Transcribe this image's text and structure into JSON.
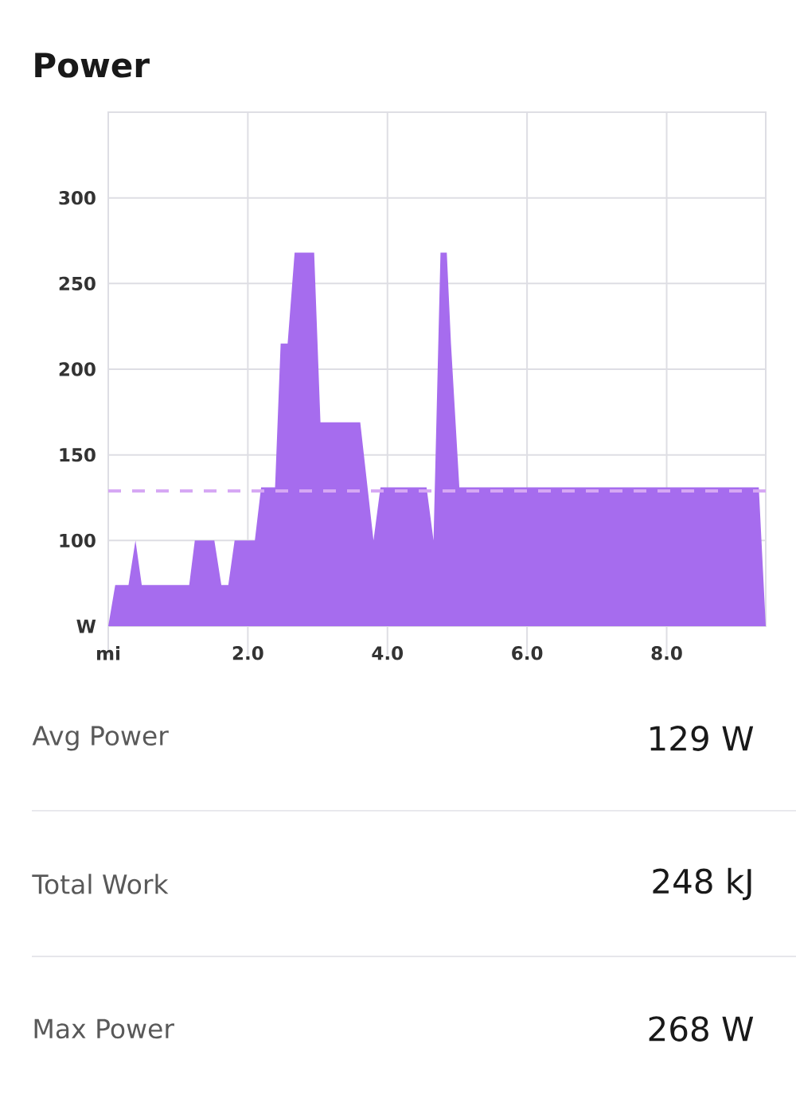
{
  "chart_data": {
    "type": "area",
    "title": "Power",
    "x": [
      0,
      0.1,
      0.29,
      0.39,
      0.48,
      1.16,
      1.24,
      1.52,
      1.62,
      1.72,
      1.81,
      2.1,
      2.19,
      2.39,
      2.47,
      2.57,
      2.67,
      2.95,
      3.04,
      3.61,
      3.8,
      3.9,
      4.56,
      4.66,
      4.76,
      4.85,
      4.91,
      5.03,
      9.32,
      9.42
    ],
    "values": [
      50,
      74,
      74,
      100,
      74,
      74,
      100,
      100,
      74,
      74,
      100,
      100,
      131,
      131,
      215,
      215,
      268,
      268,
      169,
      169,
      100,
      131,
      131,
      100,
      268,
      268,
      215,
      131,
      131,
      50
    ],
    "color": "#a66cee",
    "xlim": [
      0,
      9.42
    ],
    "ylim": [
      50,
      350
    ],
    "xticks": [
      {
        "value": 0,
        "label": "mi"
      },
      {
        "value": 2,
        "label": "2.0"
      },
      {
        "value": 4,
        "label": "4.0"
      },
      {
        "value": 6,
        "label": "6.0"
      },
      {
        "value": 8,
        "label": "8.0"
      }
    ],
    "yticks": [
      {
        "value": 50,
        "label": "W"
      },
      100,
      150,
      200,
      250,
      300
    ],
    "grid": true,
    "ref_lines": [
      {
        "axis": "y",
        "value": 129,
        "color": "#d6a8f4",
        "line_style": "dashed"
      }
    ],
    "annotations": [
      "Avg Power",
      "129 W",
      "Total Work",
      "248 kJ",
      "Max Power",
      "268 W"
    ]
  }
}
